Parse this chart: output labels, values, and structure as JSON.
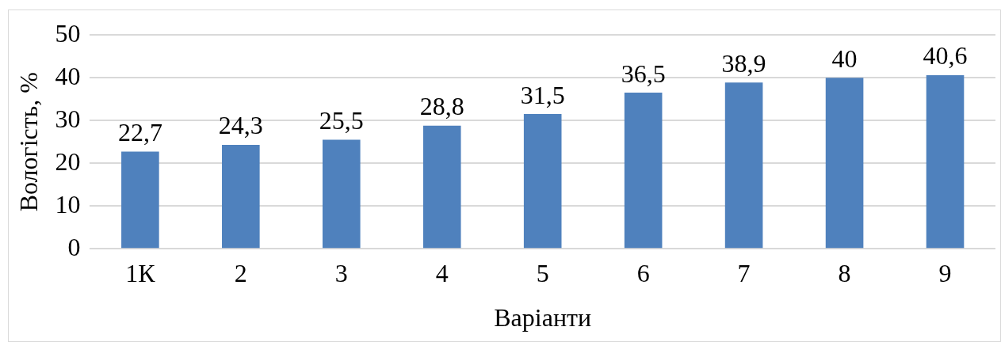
{
  "chart_data": {
    "type": "bar",
    "xlabel": "Варіанти",
    "ylabel": "Вологість, %",
    "categories": [
      "1К",
      "2",
      "3",
      "4",
      "5",
      "6",
      "7",
      "8",
      "9"
    ],
    "values": [
      22.7,
      24.3,
      25.5,
      28.8,
      31.5,
      36.5,
      38.9,
      40,
      40.6
    ],
    "value_labels": [
      "22,7",
      "24,3",
      "25,5",
      "28,8",
      "31,5",
      "36,5",
      "38,9",
      "40",
      "40,6"
    ],
    "color": "#4f81bd",
    "ylim": [
      0,
      50
    ],
    "yticks": [
      0,
      10,
      20,
      30,
      40,
      50
    ],
    "grid": "y",
    "legend": false
  }
}
